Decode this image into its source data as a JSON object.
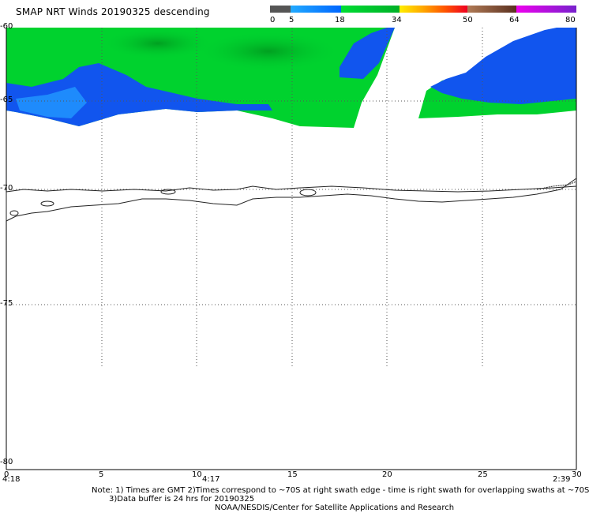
{
  "title": "SMAP NRT Winds  20190325 descending",
  "colorbar": {
    "labels": [
      "0",
      "5",
      "18",
      "34",
      "50",
      "64",
      "80"
    ],
    "colors": {
      "calm": "#5a5a5a",
      "low": "#00aaff",
      "mid": "#0033dd",
      "green": "#00c832",
      "yellow": "#ffdd00",
      "orange": "#ff7700",
      "red": "#ee0022",
      "brown": "#8b5a3c",
      "magenta": "#cc00cc",
      "purple": "#7722cc"
    }
  },
  "lat_labels": [
    "-60",
    "-65",
    "-70",
    "-75",
    "-80"
  ],
  "lon_labels": [
    "0",
    "5",
    "10",
    "15",
    "20",
    "25",
    "30"
  ],
  "time_labels": [
    "4:18",
    "4:17",
    "2:39"
  ],
  "notes": {
    "line1": "Note: 1) Times are GMT 2)Times correspond to ~70S at right swath edge - time is right swath for overlapping swaths at ~70S",
    "line2": "3)Data buffer is 24 hrs for 20190325",
    "line3": "NOAA/NESDIS/Center for Satellite Applications and Research"
  }
}
